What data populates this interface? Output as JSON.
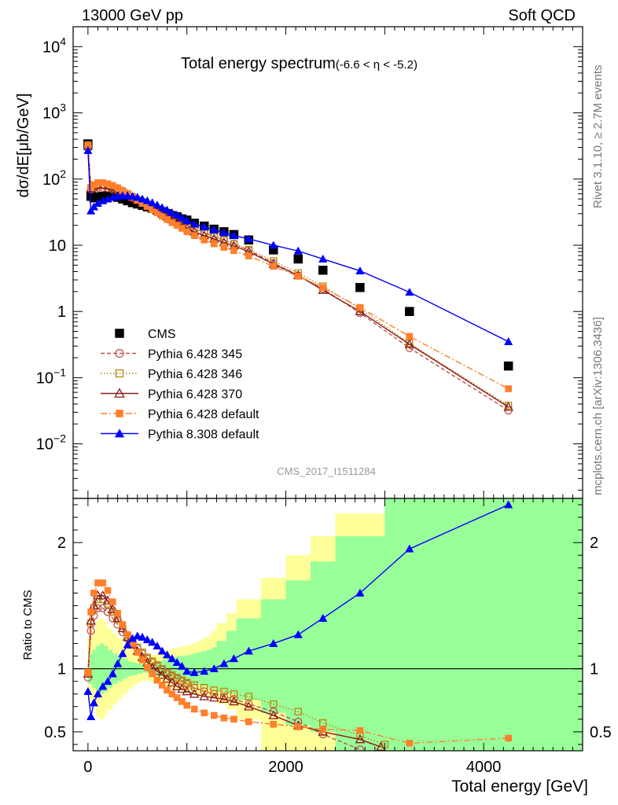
{
  "header": {
    "left": "13000 GeV pp",
    "right": "Soft QCD",
    "title": "Total energy spectrum",
    "title_sub": "(-6.6 < η < -5.2)",
    "side_top": "Rivet 3.1.10, ≥ 2.7M events",
    "side_bottom": "mcplots.cern.ch [arXiv:1306.3436]",
    "analysis": "CMS_2017_I1511284"
  },
  "chart_data": [
    {
      "type": "scatter",
      "panel": "main",
      "xlabel": "Total energy [GeV]",
      "ylabel": "dσ/dE[μb/GeV]",
      "yscale": "log",
      "xlim": [
        -150,
        5000
      ],
      "ylim": [
        0.0015,
        20000
      ],
      "y_ticks": [
        "10^-2",
        "10^-1",
        "1",
        "10",
        "10^2",
        "10^3",
        "10^4"
      ],
      "legend_position": "bottom-left",
      "series": [
        {
          "name": "CMS",
          "color": "#000000",
          "marker": "square",
          "line": "none",
          "x": [
            0,
            30,
            60,
            100,
            150,
            200,
            250,
            300,
            350,
            400,
            450,
            500,
            550,
            600,
            650,
            700,
            750,
            800,
            850,
            900,
            950,
            1000,
            1075,
            1175,
            1275,
            1375,
            1475,
            1625,
            1875,
            2125,
            2375,
            2750,
            3250,
            4250
          ],
          "y": [
            340,
            55,
            52,
            54,
            55,
            56,
            55,
            53,
            50,
            47,
            44,
            42,
            40,
            38,
            36,
            34,
            32,
            30,
            28,
            27,
            25,
            24,
            21.5,
            19.5,
            17.5,
            16,
            14.5,
            12,
            8.5,
            6.2,
            4.2,
            2.3,
            1.0,
            0.15
          ]
        },
        {
          "name": "Pythia 6.428 345",
          "color": "#c0504d",
          "marker": "open-circle",
          "line": "dashed",
          "x": [
            0,
            30,
            60,
            100,
            150,
            200,
            250,
            300,
            350,
            400,
            450,
            500,
            550,
            600,
            650,
            700,
            750,
            800,
            850,
            900,
            950,
            1000,
            1075,
            1175,
            1275,
            1375,
            1475,
            1625,
            1875,
            2125,
            2375,
            2750,
            3250,
            4250
          ],
          "y": [
            310,
            70,
            72,
            74,
            74,
            73,
            70,
            67,
            62,
            57,
            52,
            48,
            44,
            40,
            37,
            34,
            31,
            28.5,
            26,
            24,
            22,
            20,
            17.5,
            15.5,
            13.5,
            12,
            10.5,
            8.4,
            5.4,
            3.5,
            2.2,
            0.95,
            0.28,
            0.032
          ]
        },
        {
          "name": "Pythia 6.428 346",
          "color": "#b8860b",
          "marker": "open-square",
          "line": "dotted",
          "x": [
            0,
            30,
            60,
            100,
            150,
            200,
            250,
            300,
            350,
            400,
            450,
            500,
            550,
            600,
            650,
            700,
            750,
            800,
            850,
            900,
            950,
            1000,
            1075,
            1175,
            1275,
            1375,
            1475,
            1625,
            1875,
            2125,
            2375,
            2750,
            3250,
            4250
          ],
          "y": [
            320,
            72,
            76,
            80,
            80,
            78,
            74,
            70,
            64,
            59,
            54,
            49,
            45,
            41,
            37.5,
            34.5,
            31.5,
            28.5,
            26,
            24,
            22,
            20,
            17.5,
            15.5,
            13.5,
            12,
            10.5,
            8.6,
            5.8,
            3.8,
            2.4,
            1.1,
            0.33,
            0.038
          ]
        },
        {
          "name": "Pythia 6.428 370",
          "color": "#8b1a1a",
          "marker": "open-triangle",
          "line": "solid",
          "x": [
            0,
            30,
            60,
            100,
            150,
            200,
            250,
            300,
            350,
            400,
            450,
            500,
            550,
            600,
            650,
            700,
            750,
            800,
            850,
            900,
            950,
            1000,
            1075,
            1175,
            1275,
            1375,
            1475,
            1625,
            1875,
            2125,
            2375,
            2750,
            3250,
            4250
          ],
          "y": [
            310,
            72,
            78,
            82,
            82,
            80,
            76,
            71,
            65,
            59,
            53,
            48,
            43.5,
            39.5,
            36,
            33,
            30,
            27,
            24.5,
            22.5,
            20.5,
            18.5,
            16,
            14,
            12.5,
            11,
            9.8,
            8.0,
            5.2,
            3.5,
            2.1,
            1.0,
            0.32,
            0.036
          ]
        },
        {
          "name": "Pythia 6.428 default",
          "color": "#ff7f2a",
          "marker": "filled-square",
          "line": "dashdot",
          "x": [
            0,
            30,
            60,
            100,
            150,
            200,
            250,
            300,
            350,
            400,
            450,
            500,
            550,
            600,
            650,
            700,
            750,
            800,
            850,
            900,
            950,
            1000,
            1075,
            1175,
            1275,
            1375,
            1475,
            1625,
            1875,
            2125,
            2375,
            2750,
            3250,
            4250
          ],
          "y": [
            330,
            75,
            82,
            88,
            88,
            85,
            80,
            74,
            67,
            60,
            54,
            48,
            43,
            38.5,
            34.5,
            31,
            27.5,
            24.5,
            22,
            20,
            18,
            16,
            14,
            12,
            10.5,
            9.3,
            8.3,
            6.9,
            4.8,
            3.4,
            2.3,
            1.15,
            0.42,
            0.068
          ]
        },
        {
          "name": "Pythia 8.308 default",
          "color": "#0000ff",
          "marker": "filled-triangle",
          "line": "solid",
          "x": [
            0,
            30,
            60,
            100,
            150,
            200,
            250,
            300,
            350,
            400,
            450,
            500,
            550,
            600,
            650,
            700,
            750,
            800,
            850,
            900,
            950,
            1000,
            1075,
            1175,
            1275,
            1375,
            1475,
            1625,
            1875,
            2125,
            2375,
            2750,
            3250,
            4250
          ],
          "y": [
            270,
            33,
            38,
            43,
            47,
            50,
            53,
            55,
            56,
            56,
            55,
            53,
            50,
            47,
            44,
            40.5,
            37,
            34,
            31,
            28.5,
            26,
            23.5,
            21,
            19,
            17,
            15.5,
            14,
            12.5,
            10,
            8.2,
            6.2,
            4.1,
            1.95,
            0.35
          ]
        }
      ]
    },
    {
      "type": "line",
      "panel": "ratio",
      "xlabel": "Total energy [GeV]",
      "ylabel": "Ratio to CMS",
      "xlim": [
        -150,
        5000
      ],
      "ylim": [
        0.35,
        2.35
      ],
      "x_ticks": [
        0,
        2000,
        4000
      ],
      "y_ticks": [
        0.5,
        1,
        2
      ],
      "reference_line": 1,
      "bands": {
        "edges": [
          0,
          40,
          80,
          120,
          160,
          200,
          250,
          300,
          350,
          400,
          450,
          500,
          550,
          600,
          650,
          700,
          750,
          800,
          850,
          900,
          950,
          1000,
          1050,
          1100,
          1150,
          1200,
          1250,
          1300,
          1400,
          1500,
          1750,
          2000,
          2250,
          2500,
          3000,
          3500,
          5000
        ],
        "green_lo": [
          0.88,
          0.85,
          0.82,
          0.8,
          0.82,
          0.85,
          0.88,
          0.9,
          0.92,
          0.94,
          0.95,
          0.96,
          0.97,
          0.96,
          0.95,
          0.94,
          0.93,
          0.92,
          0.91,
          0.9,
          0.9,
          0.89,
          0.88,
          0.87,
          0.86,
          0.85,
          0.84,
          0.82,
          0.8,
          0.75,
          0.65,
          0.55,
          0.5,
          0.35,
          0.35,
          0.35
        ],
        "green_hi": [
          1.12,
          1.15,
          1.18,
          1.2,
          1.18,
          1.15,
          1.12,
          1.1,
          1.08,
          1.06,
          1.05,
          1.04,
          1.03,
          1.04,
          1.05,
          1.06,
          1.07,
          1.08,
          1.09,
          1.1,
          1.1,
          1.11,
          1.12,
          1.13,
          1.14,
          1.15,
          1.17,
          1.22,
          1.3,
          1.4,
          1.55,
          1.7,
          1.85,
          2.05,
          2.35,
          2.35
        ],
        "yellow_lo": [
          0.75,
          0.7,
          0.62,
          0.6,
          0.63,
          0.68,
          0.72,
          0.76,
          0.8,
          0.84,
          0.87,
          0.89,
          0.91,
          0.9,
          0.89,
          0.88,
          0.86,
          0.85,
          0.84,
          0.83,
          0.82,
          0.81,
          0.8,
          0.79,
          0.78,
          0.77,
          0.76,
          0.72,
          0.68,
          0.6,
          0.35,
          0.35,
          0.35,
          0.35,
          0.35,
          0.35
        ],
        "yellow_hi": [
          1.25,
          1.3,
          1.38,
          1.4,
          1.37,
          1.32,
          1.28,
          1.24,
          1.2,
          1.16,
          1.13,
          1.11,
          1.09,
          1.1,
          1.11,
          1.12,
          1.14,
          1.15,
          1.16,
          1.17,
          1.18,
          1.19,
          1.2,
          1.22,
          1.24,
          1.26,
          1.3,
          1.36,
          1.44,
          1.55,
          1.72,
          1.9,
          2.05,
          2.23,
          2.35,
          2.35
        ],
        "green_color": "#99ff99",
        "yellow_color": "#ffff99"
      },
      "series": [
        {
          "name": "Pythia 6.428 345",
          "color": "#c0504d",
          "marker": "open-circle",
          "line": "dashed",
          "x": [
            0,
            30,
            60,
            100,
            150,
            200,
            250,
            300,
            350,
            400,
            450,
            500,
            550,
            600,
            650,
            700,
            750,
            800,
            850,
            900,
            950,
            1000,
            1075,
            1175,
            1275,
            1375,
            1475,
            1625,
            1875,
            2125,
            2375,
            2750
          ],
          "y": [
            0.93,
            1.3,
            1.42,
            1.48,
            1.48,
            1.45,
            1.4,
            1.35,
            1.29,
            1.24,
            1.2,
            1.16,
            1.12,
            1.08,
            1.05,
            1.02,
            0.99,
            0.96,
            0.94,
            0.92,
            0.9,
            0.88,
            0.85,
            0.82,
            0.8,
            0.78,
            0.76,
            0.72,
            0.66,
            0.58,
            0.48,
            0.36
          ]
        },
        {
          "name": "Pythia 6.428 346",
          "color": "#b8860b",
          "marker": "open-square",
          "line": "dotted",
          "x": [
            0,
            30,
            60,
            100,
            150,
            200,
            250,
            300,
            350,
            400,
            450,
            500,
            550,
            600,
            650,
            700,
            750,
            800,
            850,
            900,
            950,
            1000,
            1075,
            1175,
            1275,
            1375,
            1475,
            1625,
            1875,
            2125,
            2375,
            2750,
            3000
          ],
          "y": [
            0.97,
            1.36,
            1.48,
            1.55,
            1.55,
            1.51,
            1.45,
            1.39,
            1.32,
            1.26,
            1.21,
            1.17,
            1.13,
            1.09,
            1.06,
            1.03,
            1.0,
            0.97,
            0.95,
            0.93,
            0.91,
            0.89,
            0.87,
            0.85,
            0.83,
            0.82,
            0.8,
            0.78,
            0.72,
            0.66,
            0.57,
            0.47,
            0.4
          ]
        },
        {
          "name": "Pythia 6.428 370",
          "color": "#8b1a1a",
          "marker": "open-triangle",
          "line": "solid",
          "x": [
            0,
            30,
            60,
            100,
            150,
            200,
            250,
            300,
            350,
            400,
            450,
            500,
            550,
            600,
            650,
            700,
            750,
            800,
            850,
            900,
            950,
            1000,
            1075,
            1175,
            1275,
            1375,
            1475,
            1625,
            1875,
            2125,
            2375,
            2750,
            2960
          ],
          "y": [
            0.96,
            1.38,
            1.5,
            1.58,
            1.58,
            1.54,
            1.47,
            1.4,
            1.32,
            1.25,
            1.19,
            1.14,
            1.09,
            1.05,
            1.01,
            0.98,
            0.95,
            0.92,
            0.89,
            0.86,
            0.84,
            0.82,
            0.8,
            0.78,
            0.77,
            0.76,
            0.74,
            0.7,
            0.63,
            0.55,
            0.5,
            0.44,
            0.38
          ]
        },
        {
          "name": "Pythia 6.428 default",
          "color": "#ff7f2a",
          "marker": "filled-square",
          "line": "dashdot",
          "x": [
            0,
            30,
            60,
            100,
            150,
            200,
            250,
            300,
            350,
            400,
            450,
            500,
            550,
            600,
            650,
            700,
            750,
            800,
            850,
            900,
            950,
            1000,
            1075,
            1175,
            1275,
            1375,
            1475,
            1625,
            1875,
            2125,
            2375,
            2750,
            3250,
            4250
          ],
          "y": [
            0.97,
            1.45,
            1.6,
            1.68,
            1.68,
            1.62,
            1.53,
            1.44,
            1.35,
            1.27,
            1.2,
            1.13,
            1.07,
            1.01,
            0.96,
            0.91,
            0.87,
            0.83,
            0.8,
            0.77,
            0.74,
            0.71,
            0.68,
            0.65,
            0.63,
            0.61,
            0.6,
            0.58,
            0.56,
            0.54,
            0.52,
            0.51,
            0.41,
            0.45
          ]
        },
        {
          "name": "Pythia 8.308 default",
          "color": "#0000ff",
          "marker": "filled-triangle",
          "line": "solid",
          "x": [
            0,
            30,
            60,
            100,
            150,
            200,
            250,
            300,
            350,
            400,
            450,
            500,
            550,
            600,
            650,
            700,
            750,
            800,
            850,
            900,
            950,
            1000,
            1075,
            1175,
            1275,
            1375,
            1475,
            1625,
            1875,
            2125,
            2375,
            2750,
            3250,
            4250
          ],
          "y": [
            0.82,
            0.62,
            0.73,
            0.8,
            0.86,
            0.9,
            0.96,
            1.04,
            1.12,
            1.19,
            1.24,
            1.26,
            1.25,
            1.23,
            1.21,
            1.18,
            1.14,
            1.11,
            1.08,
            1.05,
            1.02,
            0.98,
            0.97,
            0.98,
            1.0,
            1.04,
            1.08,
            1.14,
            1.2,
            1.27,
            1.4,
            1.6,
            1.95,
            2.3
          ]
        }
      ]
    }
  ]
}
